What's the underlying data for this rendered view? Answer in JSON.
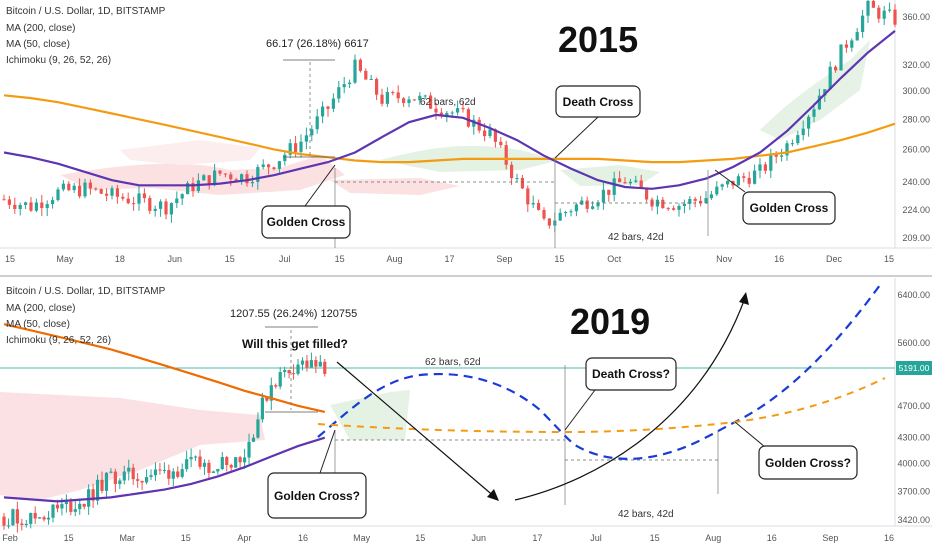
{
  "chart_data": [
    {
      "type": "line",
      "year_label": "2015",
      "legend": [
        "Bitcoin / U.S. Dollar, 1D, BITSTAMP",
        "MA (200, close)",
        "MA (50, close)",
        "Ichimoku (9, 26, 52, 26)"
      ],
      "x_ticks": [
        "15",
        "May",
        "18",
        "Jun",
        "15",
        "Jul",
        "15",
        "Aug",
        "17",
        "Sep",
        "15",
        "Oct",
        "15",
        "Nov",
        "16",
        "Dec",
        "15"
      ],
      "y_ticks": [
        360,
        320,
        300,
        280,
        260,
        240,
        224,
        209
      ],
      "y_tick_labels": [
        "360.00",
        "320.00",
        "300.00",
        "280.00",
        "260.00",
        "240.00",
        "224.00",
        "209.00"
      ],
      "ylim": [
        205,
        370
      ],
      "measure_label": "66.17 (26.18%) 6617",
      "bars_label_1": "62 bars, 62d",
      "bars_label_2": "42 bars, 42d",
      "callouts": [
        "Golden Cross",
        "Death Cross",
        "Golden Cross"
      ],
      "series": [
        {
          "name": "MA (200, close)",
          "color": "#f39c12",
          "values": [
            297,
            295,
            292,
            288,
            284,
            280,
            276,
            272,
            268,
            264,
            260,
            257,
            255,
            253,
            252,
            252,
            253,
            254,
            254,
            254,
            254,
            254,
            254,
            253,
            252,
            252,
            253,
            254,
            256,
            258,
            262,
            266,
            271,
            277
          ]
        },
        {
          "name": "MA (50, close)",
          "color": "#5e35b1",
          "values": [
            258,
            255,
            251,
            246,
            241,
            238,
            238,
            238,
            239,
            241,
            244,
            248,
            252,
            258,
            268,
            278,
            283,
            281,
            274,
            266,
            256,
            248,
            241,
            237,
            236,
            238,
            242,
            249,
            258,
            272,
            290,
            310,
            330,
            348
          ]
        },
        {
          "name": "BTCUSD close",
          "color": "#26a69a",
          "values": [
            230,
            226,
            234,
            236,
            232,
            229,
            226,
            238,
            245,
            243,
            252,
            265,
            288,
            318,
            294,
            297,
            289,
            282,
            270,
            240,
            216,
            225,
            232,
            241,
            230,
            227,
            231,
            240,
            246,
            263,
            290,
            330,
            368,
            358
          ]
        }
      ]
    },
    {
      "type": "line",
      "year_label": "2019",
      "legend": [
        "Bitcoin / U.S. Dollar, 1D, BITSTAMP",
        "MA (200, close)",
        "MA (50, close)",
        "Ichimoku (9, 26, 52, 26)"
      ],
      "x_ticks": [
        "Feb",
        "15",
        "Mar",
        "15",
        "Apr",
        "16",
        "May",
        "15",
        "Jun",
        "17",
        "Jul",
        "15",
        "Aug",
        "16",
        "Sep",
        "16"
      ],
      "y_ticks": [
        6400,
        5600,
        5191,
        4700,
        4300,
        4000,
        3700,
        3420
      ],
      "y_tick_labels": [
        "6400.00",
        "5600.00",
        "5191.00",
        "4700.00",
        "4300.00",
        "4000.00",
        "3700.00",
        "3420.00"
      ],
      "ylim": [
        3380,
        6600
      ],
      "last_price_label": "5191.00",
      "measure_label": "1207.55 (26.24%) 120755",
      "question": "Will this get filled?",
      "bars_label_1": "62 bars, 62d",
      "bars_label_2": "42 bars, 42d",
      "callouts": [
        "Golden Cross?",
        "Death Cross?",
        "Golden Cross?"
      ],
      "series": [
        {
          "name": "MA (200, close)",
          "color": "#ef6c00",
          "values": [
            5900,
            5800,
            5700,
            5600,
            5500,
            5380,
            5260,
            5140,
            5020,
            4900,
            4800,
            4700,
            4620
          ]
        },
        {
          "name": "MA (50, close)",
          "color": "#5e35b1",
          "values": [
            3640,
            3620,
            3600,
            3620,
            3640,
            3680,
            3720,
            3780,
            3860,
            3960,
            4080,
            4200,
            4300
          ]
        },
        {
          "name": "BTCUSD close",
          "color": "#26a69a",
          "values": [
            3450,
            3430,
            3520,
            3600,
            3860,
            3860,
            3900,
            3980,
            4000,
            4100,
            5000,
            5300,
            5191
          ]
        }
      ]
    }
  ]
}
